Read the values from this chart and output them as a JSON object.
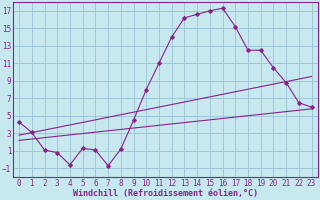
{
  "bg_color": "#c8e8f0",
  "grid_color": "#a0c8d8",
  "line_color": "#882288",
  "xlabel": "Windchill (Refroidissement éolien,°C)",
  "xlim": [
    -0.5,
    23.5
  ],
  "ylim": [
    -2.0,
    18.0
  ],
  "yticks": [
    -1,
    1,
    3,
    5,
    7,
    9,
    11,
    13,
    15,
    17
  ],
  "xticks": [
    0,
    1,
    2,
    3,
    4,
    5,
    6,
    7,
    8,
    9,
    10,
    11,
    12,
    13,
    14,
    15,
    16,
    17,
    18,
    19,
    20,
    21,
    22,
    23
  ],
  "line1_x": [
    0,
    1,
    2,
    3,
    4,
    5,
    6,
    7,
    8,
    9,
    10,
    11,
    12,
    13,
    14,
    15,
    16,
    17,
    18,
    19,
    20,
    21,
    22,
    23
  ],
  "line1_y": [
    4.3,
    3.1,
    1.1,
    0.8,
    -0.6,
    1.3,
    1.1,
    -0.7,
    1.2,
    4.5,
    8.0,
    11.0,
    14.0,
    16.2,
    16.6,
    17.0,
    17.3,
    15.2,
    12.5,
    12.5,
    10.5,
    8.8,
    6.5,
    6.0
  ],
  "line2_x": [
    0,
    23
  ],
  "line2_y": [
    2.8,
    9.5
  ],
  "line3_x": [
    0,
    23
  ],
  "line3_y": [
    2.2,
    5.8
  ],
  "tick_fontsize": 5.5,
  "xlabel_fontsize": 6.0
}
